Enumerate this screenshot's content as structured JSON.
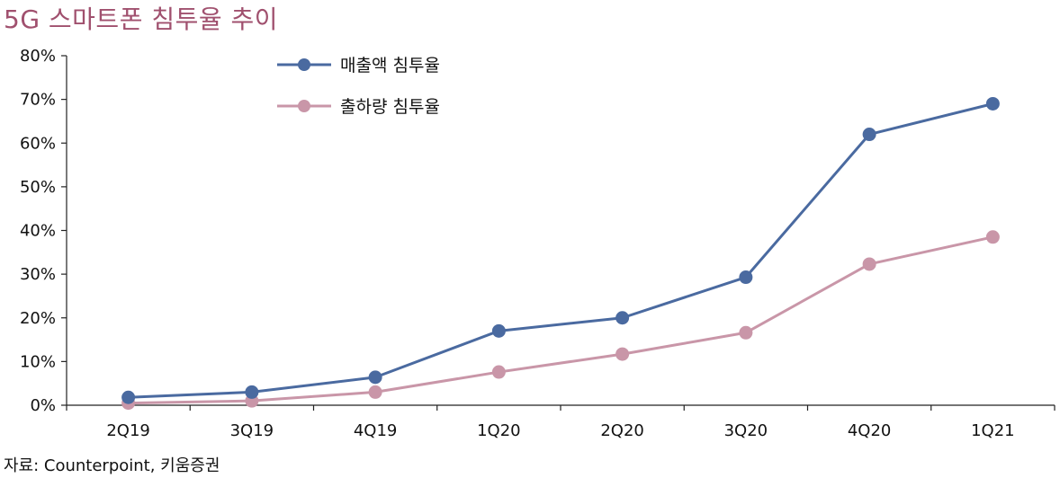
{
  "chart_data": {
    "type": "line",
    "title": "5G 스마트폰 침투율 추이",
    "categories": [
      "2Q19",
      "3Q19",
      "4Q19",
      "1Q20",
      "2Q20",
      "3Q20",
      "4Q20",
      "1Q21"
    ],
    "series": [
      {
        "name": "매출액 침투율",
        "color": "#4a6aa0",
        "values": [
          1.8,
          3.0,
          6.4,
          17.0,
          20.0,
          29.3,
          62.0,
          69.0
        ]
      },
      {
        "name": "출하량 침투율",
        "color": "#c996a8",
        "values": [
          0.5,
          1.0,
          3.0,
          7.6,
          11.7,
          16.6,
          32.3,
          38.5
        ]
      }
    ],
    "ylim": [
      0,
      80
    ],
    "yticks": [
      "0%",
      "10%",
      "20%",
      "30%",
      "40%",
      "50%",
      "60%",
      "70%",
      "80%"
    ],
    "ytick_values": [
      0,
      10,
      20,
      30,
      40,
      50,
      60,
      70,
      80
    ],
    "legend_position": "top-center",
    "grid": false
  },
  "source": "자료: Counterpoint, 키움증권"
}
